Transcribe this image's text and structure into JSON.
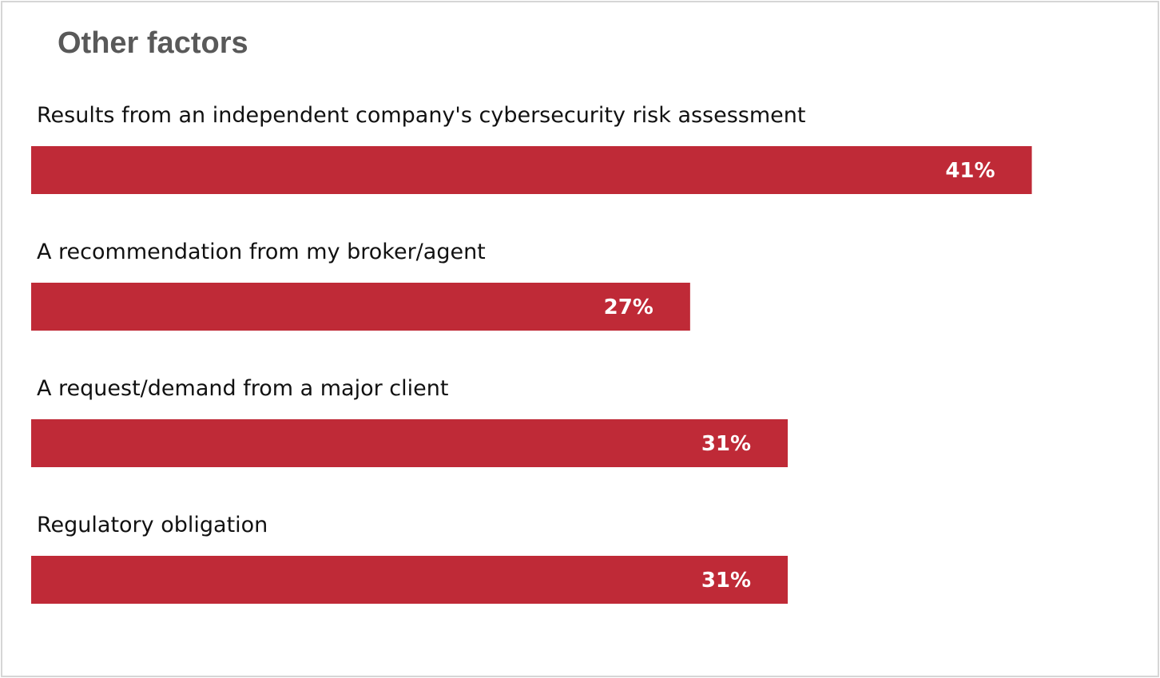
{
  "chart_data": {
    "type": "bar",
    "orientation": "horizontal",
    "title": "Other factors",
    "categories": [
      "Results from an independent company's cybersecurity risk assessment",
      "A recommendation from my broker/agent",
      "A request/demand from a major client",
      "Regulatory obligation"
    ],
    "values": [
      41,
      27,
      31,
      31
    ],
    "value_labels": [
      "41%",
      "27%",
      "31%",
      "31%"
    ],
    "unit": "%",
    "xlim": [
      0,
      47.5
    ],
    "grid": false,
    "legend": "none",
    "colors": {
      "bar": "#bf2a37",
      "title": "#595959",
      "label": "#111111",
      "value_label": "#ffffff",
      "border": "#d6d6d6"
    }
  }
}
